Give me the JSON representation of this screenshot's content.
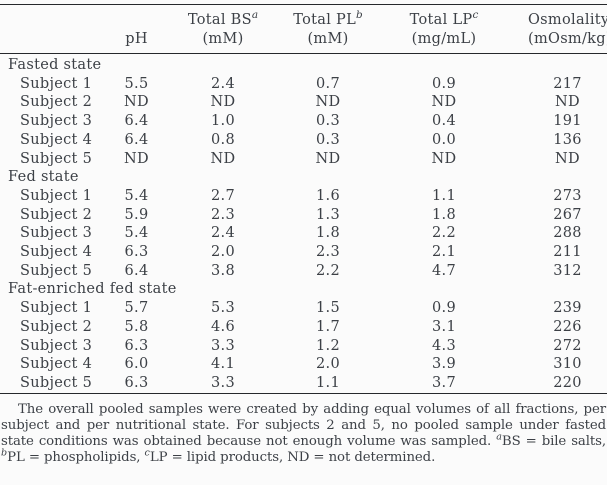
{
  "colors": {
    "background": "#fbfbfb",
    "text": "#3c4046",
    "rule": "#26282c"
  },
  "table": {
    "columns": [
      {
        "id": "row-label",
        "title": "",
        "sup": "",
        "unit": ""
      },
      {
        "id": "ph",
        "title": "pH",
        "sup": "",
        "unit": ""
      },
      {
        "id": "total-bs",
        "title": "Total BS",
        "sup": "a",
        "unit": "(mM)"
      },
      {
        "id": "total-pl",
        "title": "Total PL",
        "sup": "b",
        "unit": "(mM)"
      },
      {
        "id": "total-lp",
        "title": "Total LP",
        "sup": "c",
        "unit": "(mg/mL)"
      },
      {
        "id": "osmolality",
        "title": "Osmolality",
        "sup": "",
        "unit": "(mOsm/kg)"
      }
    ],
    "sections": [
      {
        "label": "Fasted state",
        "rows": [
          {
            "label": "Subject 1",
            "values": [
              "5.5",
              "2.4",
              "0.7",
              "0.9",
              "217"
            ]
          },
          {
            "label": "Subject 2",
            "values": [
              "ND",
              "ND",
              "ND",
              "ND",
              "ND"
            ]
          },
          {
            "label": "Subject 3",
            "values": [
              "6.4",
              "1.0",
              "0.3",
              "0.4",
              "191"
            ]
          },
          {
            "label": "Subject 4",
            "values": [
              "6.4",
              "0.8",
              "0.3",
              "0.0",
              "136"
            ]
          },
          {
            "label": "Subject 5",
            "values": [
              "ND",
              "ND",
              "ND",
              "ND",
              "ND"
            ]
          }
        ]
      },
      {
        "label": "Fed state",
        "rows": [
          {
            "label": "Subject 1",
            "values": [
              "5.4",
              "2.7",
              "1.6",
              "1.1",
              "273"
            ]
          },
          {
            "label": "Subject 2",
            "values": [
              "5.9",
              "2.3",
              "1.3",
              "1.8",
              "267"
            ]
          },
          {
            "label": "Subject 3",
            "values": [
              "5.4",
              "2.4",
              "1.8",
              "2.2",
              "288"
            ]
          },
          {
            "label": "Subject 4",
            "values": [
              "6.3",
              "2.0",
              "2.3",
              "2.1",
              "211"
            ]
          },
          {
            "label": "Subject 5",
            "values": [
              "6.4",
              "3.8",
              "2.2",
              "4.7",
              "312"
            ]
          }
        ]
      },
      {
        "label": "Fat-enriched fed state",
        "rows": [
          {
            "label": "Subject 1",
            "values": [
              "5.7",
              "5.3",
              "1.5",
              "0.9",
              "239"
            ]
          },
          {
            "label": "Subject 2",
            "values": [
              "5.8",
              "4.6",
              "1.7",
              "3.1",
              "226"
            ]
          },
          {
            "label": "Subject 3",
            "values": [
              "6.3",
              "3.3",
              "1.2",
              "4.3",
              "272"
            ]
          },
          {
            "label": "Subject 4",
            "values": [
              "6.0",
              "4.1",
              "2.0",
              "3.9",
              "310"
            ]
          },
          {
            "label": "Subject 5",
            "values": [
              "6.3",
              "3.3",
              "1.1",
              "3.7",
              "220"
            ]
          }
        ]
      }
    ]
  },
  "footnote": {
    "segments": [
      {
        "text": "The overall pooled samples were created by adding equal volumes of all fractions, per subject and per nutritional state. For subjects 2 and 5, no pooled sample under fasted state conditions was obtained because not enough volume was sampled. "
      },
      {
        "sup": "a"
      },
      {
        "text": "BS = bile salts, "
      },
      {
        "sup": "b"
      },
      {
        "text": "PL = phospholipids, "
      },
      {
        "sup": "c"
      },
      {
        "text": "LP = lipid products, ND = not determined."
      }
    ]
  }
}
